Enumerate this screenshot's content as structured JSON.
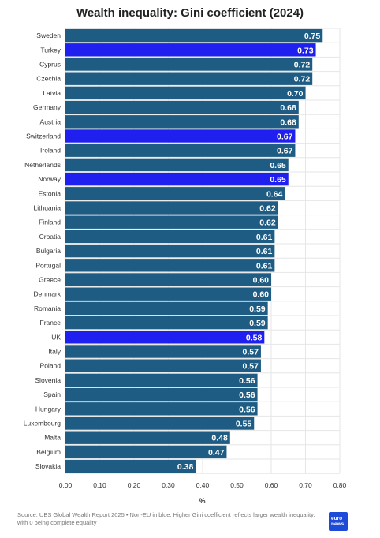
{
  "chart_data": {
    "type": "bar",
    "orientation": "horizontal",
    "title": "Wealth inequality: Gini coefficient (2024)",
    "xlabel": "%",
    "xlim": [
      0,
      0.8
    ],
    "xticks": [
      "0.00",
      "0.10",
      "0.20",
      "0.30",
      "0.40",
      "0.50",
      "0.60",
      "0.70",
      "0.80"
    ],
    "grid": "vertical",
    "colors": {
      "eu": "#1f5c84",
      "non_eu": "#1f1ff0",
      "label_text": "#ffffff"
    },
    "categories": [
      "Sweden",
      "Turkey",
      "Cyprus",
      "Czechia",
      "Latvia",
      "Germany",
      "Austria",
      "Switzerland",
      "Ireland",
      "Netherlands",
      "Norway",
      "Estonia",
      "Lithuania",
      "Finland",
      "Croatia",
      "Bulgaria",
      "Portugal",
      "Greece",
      "Denmark",
      "Romania",
      "France",
      "UK",
      "Italy",
      "Poland",
      "Slovenia",
      "Spain",
      "Hungary",
      "Luxembourg",
      "Malta",
      "Belgium",
      "Slovakia"
    ],
    "values": [
      0.75,
      0.73,
      0.72,
      0.72,
      0.7,
      0.68,
      0.68,
      0.67,
      0.67,
      0.65,
      0.65,
      0.64,
      0.62,
      0.62,
      0.61,
      0.61,
      0.61,
      0.6,
      0.6,
      0.59,
      0.59,
      0.58,
      0.57,
      0.57,
      0.56,
      0.56,
      0.56,
      0.55,
      0.48,
      0.47,
      0.38
    ],
    "value_labels": [
      "0.75",
      "0.73",
      "0.72",
      "0.72",
      "0.70",
      "0.68",
      "0.68",
      "0.67",
      "0.67",
      "0.65",
      "0.65",
      "0.64",
      "0.62",
      "0.62",
      "0.61",
      "0.61",
      "0.61",
      "0.60",
      "0.60",
      "0.59",
      "0.59",
      "0.58",
      "0.57",
      "0.57",
      "0.56",
      "0.56",
      "0.56",
      "0.55",
      "0.48",
      "0.47",
      "0.38"
    ],
    "non_eu": [
      "Turkey",
      "Switzerland",
      "Norway",
      "UK"
    ]
  },
  "footer": {
    "source": "Source: UBS Global Wealth Report 2025 • Non-EU in blue. Higher Gini coefficient reflects larger wealth inequality, with 0 being complete equality",
    "logo_text": "euro news."
  }
}
